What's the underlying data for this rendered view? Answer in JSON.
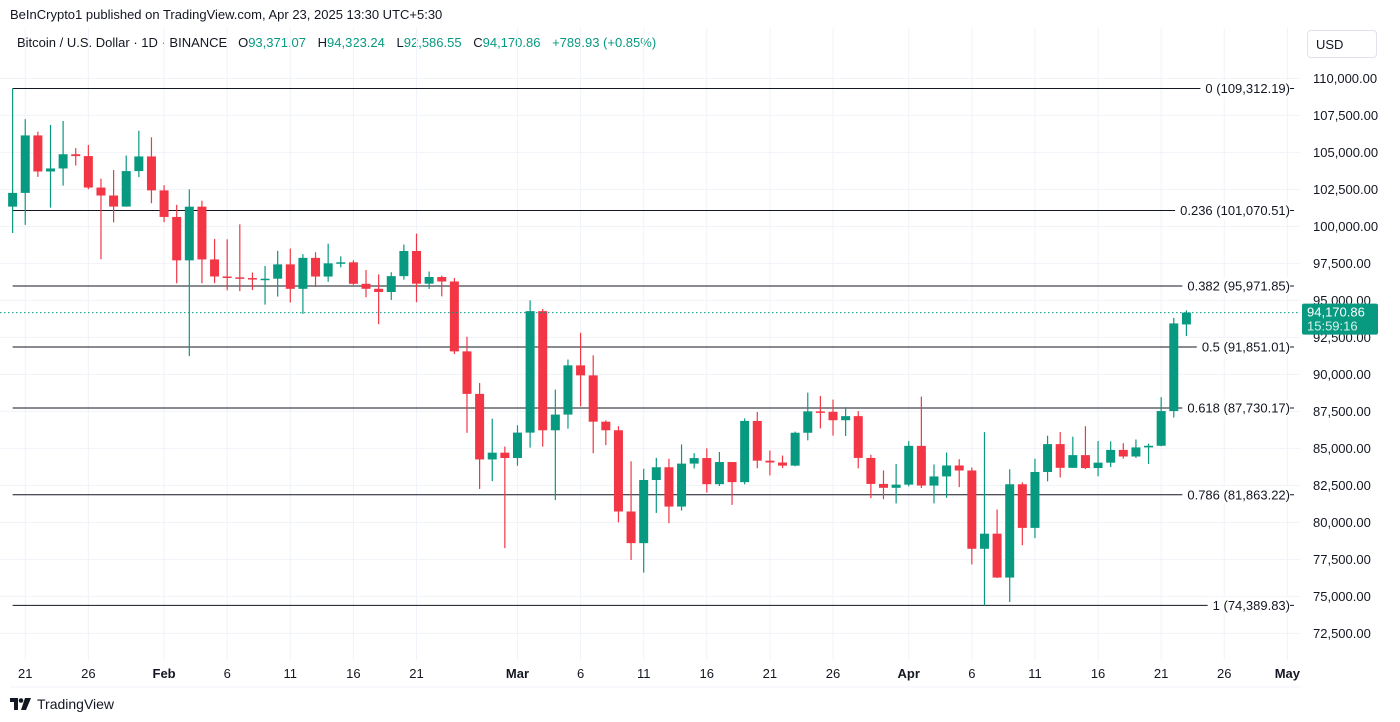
{
  "publisher_line": "BeInCrypto1 published on TradingView.com, Apr 23, 2025 13:30 UTC+5:30",
  "legend": {
    "symbol": "Bitcoin / U.S. Dollar · 1D · BINANCE",
    "open_label": "O",
    "open": "93,371.07",
    "high_label": "H",
    "high": "94,323.24",
    "low_label": "L",
    "low": "92,586.55",
    "close_label": "C",
    "close": "94,170.86",
    "change": "+789.93 (+0.85%)"
  },
  "currency_button": "USD",
  "footer": {
    "brand": "TradingView",
    "logo_icon": "tradingview-logo-icon"
  },
  "colors": {
    "up": "#089981",
    "down": "#f23645",
    "fib_line": "#131722",
    "grid": "#f0f3fa"
  },
  "chart_data": {
    "type": "candlestick",
    "symbol": "BTCUSD",
    "interval": "1D",
    "ylim": [
      70700,
      113400
    ],
    "xlim": [
      "2025-01-19",
      "2025-05-02"
    ],
    "grid": true,
    "y_ticks": [
      "110,000.00",
      "107,500.00",
      "105,000.00",
      "102,500.00",
      "100,000.00",
      "97,500.00",
      "95,000.00",
      "92,500.00",
      "90,000.00",
      "87,500.00",
      "85,000.00",
      "82,500.00",
      "80,000.00",
      "77,500.00",
      "75,000.00",
      "72,500.00"
    ],
    "x_ticks": [
      {
        "date": "2025-01-21",
        "label": "21"
      },
      {
        "date": "2025-01-26",
        "label": "26"
      },
      {
        "date": "2025-02-01",
        "label": "Feb",
        "bold": true
      },
      {
        "date": "2025-02-06",
        "label": "6"
      },
      {
        "date": "2025-02-11",
        "label": "11"
      },
      {
        "date": "2025-02-16",
        "label": "16"
      },
      {
        "date": "2025-02-21",
        "label": "21"
      },
      {
        "date": "2025-03-01",
        "label": "Mar",
        "bold": true
      },
      {
        "date": "2025-03-06",
        "label": "6"
      },
      {
        "date": "2025-03-11",
        "label": "11"
      },
      {
        "date": "2025-03-16",
        "label": "16"
      },
      {
        "date": "2025-03-21",
        "label": "21"
      },
      {
        "date": "2025-03-26",
        "label": "26"
      },
      {
        "date": "2025-04-01",
        "label": "Apr",
        "bold": true
      },
      {
        "date": "2025-04-06",
        "label": "6"
      },
      {
        "date": "2025-04-11",
        "label": "11"
      },
      {
        "date": "2025-04-16",
        "label": "16"
      },
      {
        "date": "2025-04-21",
        "label": "21"
      },
      {
        "date": "2025-04-26",
        "label": "26"
      },
      {
        "date": "2025-05-01",
        "label": "May",
        "bold": true
      }
    ],
    "fib_levels": [
      {
        "ratio": 0,
        "price": 109312.19,
        "label": "0 (109,312.19)"
      },
      {
        "ratio": 0.236,
        "price": 101070.51,
        "label": "0.236 (101,070.51)"
      },
      {
        "ratio": 0.382,
        "price": 95971.85,
        "label": "0.382 (95,971.85)"
      },
      {
        "ratio": 0.5,
        "price": 91851.01,
        "label": "0.5 (91,851.01)"
      },
      {
        "ratio": 0.618,
        "price": 87730.17,
        "label": "0.618 (87,730.17)"
      },
      {
        "ratio": 0.786,
        "price": 81863.22,
        "label": "0.786 (81,863.22)"
      },
      {
        "ratio": 1,
        "price": 74389.83,
        "label": "1 (74,389.83)"
      }
    ],
    "last_price": {
      "price": 94170.86,
      "label": "94,170.86",
      "countdown": "15:59:16"
    },
    "candles_columns": [
      "date",
      "open",
      "high",
      "low",
      "close"
    ],
    "candles": [
      [
        "2025-01-20",
        101331,
        109312,
        99550,
        102260
      ],
      [
        "2025-01-21",
        102260,
        107240,
        100100,
        106143
      ],
      [
        "2025-01-22",
        106143,
        106394,
        103339,
        103706
      ],
      [
        "2025-01-23",
        103706,
        106850,
        101262,
        103910
      ],
      [
        "2025-01-24",
        103910,
        107120,
        102750,
        104870
      ],
      [
        "2025-01-25",
        104870,
        105286,
        104106,
        104746
      ],
      [
        "2025-01-26",
        104746,
        105500,
        102505,
        102620
      ],
      [
        "2025-01-27",
        102620,
        103220,
        97777,
        102082
      ],
      [
        "2025-01-28",
        102082,
        103800,
        100272,
        101335
      ],
      [
        "2025-01-29",
        101335,
        104782,
        101328,
        103733
      ],
      [
        "2025-01-30",
        103733,
        106457,
        103327,
        104722
      ],
      [
        "2025-01-31",
        104722,
        106012,
        101560,
        102429
      ],
      [
        "2025-02-01",
        102429,
        102783,
        100279,
        100635
      ],
      [
        "2025-02-02",
        100635,
        101456,
        96150,
        97700
      ],
      [
        "2025-02-03",
        97700,
        102500,
        91231,
        101328
      ],
      [
        "2025-02-04",
        101328,
        101730,
        96150,
        97763
      ],
      [
        "2025-02-05",
        97763,
        99149,
        96155,
        96612
      ],
      [
        "2025-02-06",
        96612,
        99120,
        95676,
        96554
      ],
      [
        "2025-02-07",
        96554,
        100137,
        95620,
        96506
      ],
      [
        "2025-02-08",
        96506,
        96880,
        95688,
        96444
      ],
      [
        "2025-02-09",
        96444,
        97323,
        94713,
        96462
      ],
      [
        "2025-02-10",
        96462,
        98345,
        95256,
        97430
      ],
      [
        "2025-02-11",
        97430,
        98500,
        94850,
        95778
      ],
      [
        "2025-02-12",
        95778,
        98119,
        94088,
        97869
      ],
      [
        "2025-02-13",
        97869,
        98249,
        95899,
        96608
      ],
      [
        "2025-02-14",
        96608,
        98826,
        96252,
        97500
      ],
      [
        "2025-02-15",
        97500,
        97972,
        97223,
        97569
      ],
      [
        "2025-02-16",
        97569,
        97704,
        96046,
        96118
      ],
      [
        "2025-02-17",
        96118,
        97046,
        95205,
        95780
      ],
      [
        "2025-02-18",
        95780,
        96753,
        93388,
        95563
      ],
      [
        "2025-02-19",
        95563,
        96899,
        95026,
        96636
      ],
      [
        "2025-02-20",
        96636,
        98766,
        96400,
        98333
      ],
      [
        "2025-02-21",
        98333,
        99508,
        94871,
        96125
      ],
      [
        "2025-02-22",
        96125,
        96950,
        95770,
        96577
      ],
      [
        "2025-02-23",
        96577,
        96671,
        95270,
        96273
      ],
      [
        "2025-02-24",
        96273,
        96503,
        91371,
        91552
      ],
      [
        "2025-02-25",
        91552,
        92540,
        86050,
        88680
      ],
      [
        "2025-02-26",
        88680,
        89414,
        82256,
        84250
      ],
      [
        "2025-02-27",
        84250,
        87000,
        82786,
        84708
      ],
      [
        "2025-02-28",
        84708,
        85120,
        78258,
        84349
      ],
      [
        "2025-03-01",
        84349,
        86558,
        83824,
        86064
      ],
      [
        "2025-03-02",
        86064,
        95000,
        85050,
        94270
      ],
      [
        "2025-03-03",
        94270,
        94416,
        85117,
        86220
      ],
      [
        "2025-03-04",
        86220,
        88967,
        81500,
        87281
      ],
      [
        "2025-03-05",
        87281,
        91000,
        86334,
        90606
      ],
      [
        "2025-03-06",
        90606,
        92810,
        87836,
        89931
      ],
      [
        "2025-03-07",
        89931,
        91283,
        84667,
        86801
      ],
      [
        "2025-03-08",
        86801,
        86897,
        85218,
        86222
      ],
      [
        "2025-03-09",
        86222,
        86500,
        80000,
        80734
      ],
      [
        "2025-03-10",
        80734,
        84123,
        77459,
        78595
      ],
      [
        "2025-03-11",
        78595,
        83617,
        76606,
        82862
      ],
      [
        "2025-03-12",
        82862,
        84358,
        80635,
        83722
      ],
      [
        "2025-03-13",
        83722,
        84300,
        79939,
        81067
      ],
      [
        "2025-03-14",
        81067,
        85263,
        80797,
        83969
      ],
      [
        "2025-03-15",
        83969,
        84672,
        83639,
        84343
      ],
      [
        "2025-03-16",
        84343,
        85000,
        82017,
        82579
      ],
      [
        "2025-03-17",
        82579,
        84756,
        82456,
        84075
      ],
      [
        "2025-03-18",
        84075,
        84075,
        81179,
        82718
      ],
      [
        "2025-03-19",
        82718,
        87021,
        82569,
        86854
      ],
      [
        "2025-03-20",
        86854,
        87453,
        83655,
        84167
      ],
      [
        "2025-03-21",
        84167,
        84850,
        83175,
        84043
      ],
      [
        "2025-03-22",
        84043,
        84513,
        83674,
        83832
      ],
      [
        "2025-03-23",
        83832,
        86129,
        83787,
        86054
      ],
      [
        "2025-03-24",
        86054,
        88765,
        85541,
        87498
      ],
      [
        "2025-03-25",
        87498,
        88542,
        86346,
        87471
      ],
      [
        "2025-03-26",
        87471,
        88292,
        85861,
        86900
      ],
      [
        "2025-03-27",
        86900,
        87786,
        85837,
        87177
      ],
      [
        "2025-03-28",
        87177,
        87515,
        83646,
        84353
      ],
      [
        "2025-03-29",
        84353,
        84567,
        81634,
        82597
      ],
      [
        "2025-03-30",
        82597,
        83505,
        81565,
        82334
      ],
      [
        "2025-03-31",
        82334,
        83943,
        81279,
        82548
      ],
      [
        "2025-04-01",
        82548,
        85487,
        82429,
        85169
      ],
      [
        "2025-04-02",
        85169,
        88500,
        82320,
        82485
      ],
      [
        "2025-04-03",
        82485,
        83909,
        81282,
        83102
      ],
      [
        "2025-04-04",
        83102,
        84720,
        81659,
        83843
      ],
      [
        "2025-04-05",
        83843,
        84266,
        82379,
        83504
      ],
      [
        "2025-04-06",
        83504,
        83705,
        77153,
        78214
      ],
      [
        "2025-04-07",
        78214,
        86100,
        74389,
        79235
      ],
      [
        "2025-04-08",
        79235,
        80867,
        76239,
        76271
      ],
      [
        "2025-04-09",
        76271,
        83588,
        74620,
        82573
      ],
      [
        "2025-04-10",
        82573,
        82700,
        78456,
        79626
      ],
      [
        "2025-04-11",
        79626,
        84300,
        78936,
        83404
      ],
      [
        "2025-04-12",
        83404,
        85856,
        82769,
        85287
      ],
      [
        "2025-04-13",
        85287,
        86100,
        83034,
        83684
      ],
      [
        "2025-04-14",
        83684,
        85785,
        83690,
        84542
      ],
      [
        "2025-04-15",
        84542,
        86496,
        83600,
        83668
      ],
      [
        "2025-04-16",
        83668,
        85500,
        83111,
        84033
      ],
      [
        "2025-04-17",
        84033,
        85470,
        83736,
        84895
      ],
      [
        "2025-04-18",
        84895,
        85350,
        84303,
        84450
      ],
      [
        "2025-04-19",
        84450,
        85597,
        84353,
        85063
      ],
      [
        "2025-04-20",
        85063,
        85320,
        83949,
        85174
      ],
      [
        "2025-04-21",
        85174,
        88460,
        85143,
        87519
      ],
      [
        "2025-04-22",
        87519,
        93817,
        87084,
        93442
      ],
      [
        "2025-04-23",
        93371.07,
        94323.24,
        92586.55,
        94170.86
      ]
    ]
  }
}
